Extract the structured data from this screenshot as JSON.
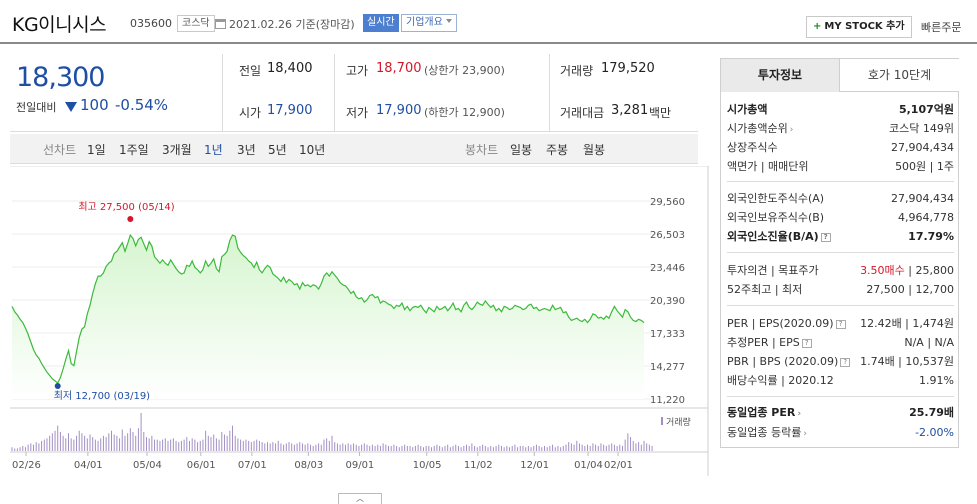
{
  "header": {
    "stock_name": "KG이니시스",
    "stock_code": "035600",
    "market": "코스닥",
    "base_date": "2021.02.26  기준(장마감)",
    "realtime_button": "실시간",
    "company_button": "기업개요",
    "mystock_plus": "+",
    "mystock_button": "MY STOCK 추가",
    "quick_order_button": "빠른주문"
  },
  "price": {
    "current": "18,300",
    "change_label": "전일대비",
    "change": "100",
    "change_pct": "-0.54%"
  },
  "quote": {
    "prev_label": "전일",
    "prev": "18,400",
    "high_label": "고가",
    "high": "18,700",
    "upper_limit": "(상한가 23,900)",
    "volume_label": "거래량",
    "volume": "179,520",
    "open_label": "시가",
    "open": "17,900",
    "low_label": "저가",
    "low": "17,900",
    "lower_limit": "(하한가 12,900)",
    "amount_label": "거래대금",
    "amount": "3,281",
    "amount_unit": "백만"
  },
  "period_bar": {
    "line_chart_label": "선차트",
    "line_periods": [
      "1일",
      "1주일",
      "3개월",
      "1년",
      "3년",
      "5년",
      "10년"
    ],
    "selected": "1년",
    "candle_chart_label": "봉차트",
    "candle_periods": [
      "일봉",
      "주봉",
      "월봉"
    ]
  },
  "chart_data": {
    "type": "area",
    "y_ticks": [
      "29,560",
      "26,503",
      "23,446",
      "20,390",
      "17,333",
      "14,277",
      "11,220"
    ],
    "ylim": [
      11220,
      29560
    ],
    "x_ticks": [
      "02/26",
      "04/01",
      "05/04",
      "06/01",
      "07/01",
      "08/03",
      "09/01",
      "10/05",
      "11/02",
      "12/01",
      "01/04",
      "02/01"
    ],
    "high_annotation": "최고 27,500 (05/14)",
    "low_annotation": "최저 12,700 (03/19)",
    "volume_legend": "거래량",
    "line_color": "#3cb93c",
    "fill_color": "#d6f5cf",
    "volume_color": "#a38fc4",
    "series": [
      {
        "values": [
          19800,
          19300,
          19000,
          18600,
          18300,
          17800,
          17200,
          16500,
          15800,
          15300,
          15000,
          14500,
          14100,
          13700,
          13400,
          13100,
          12900,
          12700,
          13200,
          14000,
          14900,
          15700,
          14500,
          14300,
          15600,
          16900,
          17700,
          17900,
          19100,
          19900,
          21000,
          21900,
          22600,
          22600,
          22900,
          23500,
          23800,
          24000,
          24700,
          24900,
          25300,
          25700,
          24900,
          25600,
          26400,
          26100,
          25400,
          26000,
          26200,
          25600,
          25000,
          25800,
          25400,
          24400,
          24100,
          23800,
          24100,
          23800,
          23600,
          24100,
          23700,
          23300,
          23000,
          22800,
          22900,
          23600,
          23500,
          24000,
          23400,
          23200,
          22900,
          23200,
          24000,
          23500,
          23800,
          24200,
          23300,
          23000,
          24400,
          24600,
          24900,
          25900,
          26400,
          26300,
          25200,
          24800,
          24500,
          24300,
          24000,
          23800,
          23400,
          23900,
          23200,
          22900,
          23300,
          23600,
          23400,
          22800,
          22600,
          22400,
          22100,
          22500,
          22000,
          22300,
          22100,
          21800,
          21900,
          21400,
          22000,
          21700,
          21800,
          21600,
          21800,
          21700,
          21400,
          21900,
          22600,
          22900,
          22600,
          23000,
          22700,
          22400,
          22000,
          21800,
          21700,
          21400,
          21000,
          21200,
          20700,
          20500,
          20600,
          20200,
          20400,
          20800,
          20900,
          20600,
          20700,
          20100,
          20300,
          20200,
          20000,
          19900,
          19600,
          19900,
          19800,
          20100,
          19500,
          19800,
          19400,
          19700,
          19800,
          19700,
          19900,
          19500,
          19200,
          19700,
          19500,
          19300,
          19800,
          19500,
          19600,
          19800,
          19400,
          19700,
          20100,
          19500,
          19600,
          19300,
          19900,
          20200,
          19700,
          19500,
          19800,
          20200,
          20000,
          19900,
          20300,
          20000,
          19700,
          19900,
          19400,
          19600,
          19300,
          19800,
          19700,
          19500,
          19600,
          19900,
          19800,
          19700,
          19500,
          19600,
          19900,
          20000,
          19600,
          19700,
          19400,
          19500,
          19600,
          19500,
          19400,
          19900,
          19500,
          19600,
          19700,
          19200,
          19300,
          18800,
          18500,
          18600,
          18700,
          18500,
          18400,
          18600,
          18300,
          18600,
          19100,
          19000,
          18700,
          18800,
          18600,
          18900,
          18700,
          19300,
          19800,
          19400,
          19100,
          18800,
          19500,
          19300,
          18800,
          18500,
          18400,
          18600,
          18500,
          18300
        ]
      }
    ],
    "volume": [
      3,
      2,
      2,
      3,
      4,
      3,
      5,
      6,
      5,
      7,
      6,
      8,
      9,
      10,
      12,
      14,
      16,
      20,
      15,
      12,
      10,
      14,
      10,
      9,
      12,
      16,
      14,
      12,
      10,
      13,
      11,
      9,
      8,
      10,
      12,
      11,
      14,
      16,
      13,
      12,
      10,
      17,
      12,
      14,
      18,
      15,
      12,
      18,
      30,
      15,
      11,
      10,
      12,
      9,
      9,
      8,
      9,
      10,
      8,
      9,
      10,
      8,
      7,
      8,
      9,
      11,
      8,
      10,
      9,
      7,
      8,
      9,
      16,
      12,
      11,
      13,
      10,
      9,
      15,
      13,
      12,
      16,
      20,
      12,
      10,
      9,
      8,
      9,
      8,
      7,
      8,
      9,
      8,
      7,
      6,
      7,
      6,
      7,
      6,
      8,
      6,
      5,
      6,
      7,
      6,
      5,
      6,
      7,
      6,
      5,
      6,
      5,
      4,
      5,
      6,
      5,
      9,
      10,
      8,
      12,
      7,
      6,
      5,
      6,
      5,
      6,
      5,
      6,
      5,
      4,
      5,
      6,
      5,
      4,
      5,
      4,
      5,
      4,
      6,
      5,
      4,
      4,
      5,
      4,
      3,
      4,
      5,
      4,
      4,
      3,
      4,
      5,
      4,
      3,
      4,
      4,
      3,
      4,
      5,
      4,
      3,
      4,
      5,
      3,
      4,
      5,
      4,
      3,
      4,
      5,
      4,
      6,
      4,
      3,
      4,
      5,
      4,
      3,
      4,
      3,
      4,
      5,
      4,
      3,
      4,
      3,
      4,
      5,
      3,
      4,
      4,
      3,
      4,
      3,
      4,
      5,
      4,
      3,
      4,
      3,
      4,
      5,
      3,
      4,
      3,
      4,
      5,
      7,
      6,
      5,
      8,
      6,
      5,
      4,
      5,
      4,
      6,
      5,
      4,
      6,
      5,
      4,
      5,
      6,
      5,
      4,
      5,
      4,
      9,
      14,
      11,
      8,
      6,
      7,
      5,
      8,
      6,
      5,
      4
    ]
  },
  "invest_panel": {
    "tab_active": "투자정보",
    "tab_other": "호가 10단계",
    "rows": {
      "market_cap_label": "시가총액",
      "market_cap": "5,107억원",
      "cap_rank_label": "시가총액순위",
      "cap_rank": "코스닥 149위",
      "shares_label": "상장주식수",
      "shares": "27,904,434",
      "face_label": "액면가 | 매매단위",
      "face": "500원 | 1주",
      "foreign_limit_label": "외국인한도주식수(A)",
      "foreign_limit": "27,904,434",
      "foreign_hold_label": "외국인보유주식수(B)",
      "foreign_hold": "4,964,778",
      "foreign_rate_label": "외국인소진율(B/A)",
      "foreign_rate": "17.79%",
      "opinion_label": "투자의견 | 목표주가",
      "opinion": "3.50매수",
      "target": "| 25,800",
      "w52_label": "52주최고 | 최저",
      "w52": "27,500 | 12,700",
      "per_label": "PER | EPS(2020.09)",
      "per": "12.42배 | 1,474원",
      "est_per_label": "추정PER | EPS",
      "est_per": "N/A | N/A",
      "pbr_label": "PBR | BPS (2020.09)",
      "pbr": "1.74배 | 10,537원",
      "div_label": "배당수익률 | 2020.12",
      "div": "1.91%",
      "ind_per_label": "동일업종 PER",
      "ind_per": "25.79배",
      "ind_chg_label": "동일업종 등락률",
      "ind_chg": "-2.00%"
    }
  },
  "collapse_tab_icon": "chevron-up"
}
